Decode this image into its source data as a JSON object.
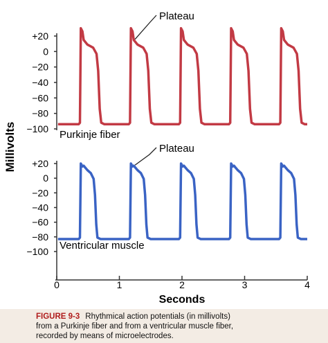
{
  "chart_data": [
    {
      "type": "line",
      "series": [
        {
          "name": "Purkinje fiber",
          "color": "#c23a44"
        }
      ],
      "annotation": "Plateau",
      "ylabel": "Millivolts",
      "yticks": [
        "+20",
        "0",
        "−20",
        "−40",
        "−60",
        "−80",
        "−100"
      ],
      "yticks_values": [
        20,
        0,
        -20,
        -40,
        -60,
        -80,
        -100
      ],
      "ylim": [
        -100,
        20
      ],
      "rest_mV": -94,
      "peak_mV": 30,
      "plateau_mV": 5,
      "upstroke_times_s": [
        0.37,
        1.17,
        1.97,
        2.77,
        3.57
      ],
      "duration_s": 0.34,
      "xlim": [
        0,
        4
      ]
    },
    {
      "type": "line",
      "series": [
        {
          "name": "Ventricular muscle",
          "color": "#3a63c4"
        }
      ],
      "annotation": "Plateau",
      "yticks": [
        "+20",
        "0",
        "−20",
        "−40",
        "−60",
        "−80",
        "−100"
      ],
      "yticks_values": [
        20,
        0,
        -20,
        -40,
        -60,
        -80,
        -100
      ],
      "ylim": [
        -100,
        20
      ],
      "rest_mV": -83,
      "peak_mV": 20,
      "plateau_mV": 7,
      "upstroke_times_s": [
        0.37,
        1.17,
        1.97,
        2.77,
        3.57
      ],
      "duration_s": 0.28,
      "xlim": [
        0,
        4
      ],
      "xlabel": "Seconds",
      "xticks": [
        "0",
        "1",
        "2",
        "3",
        "4"
      ],
      "xticks_values": [
        0,
        1,
        2,
        3,
        4
      ]
    }
  ],
  "caption": {
    "label": "FIGURE 9-3",
    "text": "Rhythmical action potentials (in millivolts) from a Purkinje fiber and from a ventricular muscle fiber, recorded by means of microelectrodes."
  }
}
